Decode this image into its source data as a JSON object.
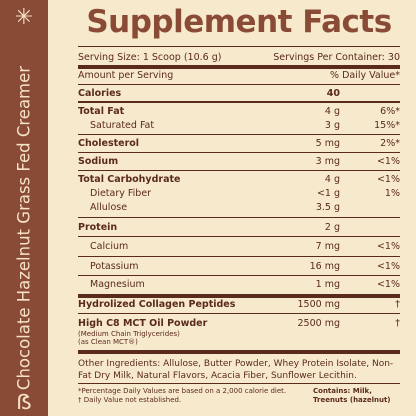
{
  "sidebar": {
    "vertical_text_light": "Chocolate Hazelnut ",
    "vertical_text_bold": "Grass Fed Creamer",
    "top_icon": "star-icon",
    "bottom_icon": "brand-b-logo"
  },
  "panel": {
    "title": "Supplement Facts",
    "serving_size": "Serving Size: 1 Scoop (10.6 g)",
    "servings_per_container": "Servings Per Container: 30",
    "amount_per_serving": "Amount per Serving",
    "daily_value_header": "% Daily Value*",
    "rows": [
      {
        "label": "Calories",
        "amount": "40",
        "dv": ""
      },
      {
        "label": "Total Fat",
        "amount": "4 g",
        "dv": "6%*"
      },
      {
        "label": "Saturated Fat",
        "amount": "3 g",
        "dv": "15%*"
      },
      {
        "label": "Cholesterol",
        "amount": "5 mg",
        "dv": "2%*"
      },
      {
        "label": "Sodium",
        "amount": "3 mg",
        "dv": "<1%"
      },
      {
        "label": "Total Carbohydrate",
        "amount": "4 g",
        "dv": "<1%"
      },
      {
        "label": "Dietary Fiber",
        "amount": "<1 g",
        "dv": "1%"
      },
      {
        "label": "Allulose",
        "amount": "3.5 g",
        "dv": ""
      },
      {
        "label": "Protein",
        "amount": "2 g",
        "dv": ""
      },
      {
        "label": "Calcium",
        "amount": "7 mg",
        "dv": "<1%"
      },
      {
        "label": "Potassium",
        "amount": "16 mg",
        "dv": "<1%"
      },
      {
        "label": "Magnesium",
        "amount": "1 mg",
        "dv": "<1%"
      },
      {
        "label": "Hydrolized Collagen Peptides",
        "amount": "1500 mg",
        "dv": "†"
      },
      {
        "label": "High C8 MCT Oil Powder",
        "amount": "2500 mg",
        "dv": "†"
      }
    ],
    "mct_sub1": "(Medium Chain Triglycerides)",
    "mct_sub2": "(as Clean MCT®)",
    "other_ingredients": "Other Ingredients: Allulose, Butter Powder, Whey Protein Isolate, Non-Fat Dry Milk, Natural Flavors, Acacia Fiber, Sunflower Lecithin.",
    "footnote1": "*Percentage Daily Values are based on a 2,000 calorie diet.",
    "footnote2": "† Daily Value not established.",
    "contains1": "Contains: Milk,",
    "contains2": "Treenuts (hazelnut)"
  }
}
